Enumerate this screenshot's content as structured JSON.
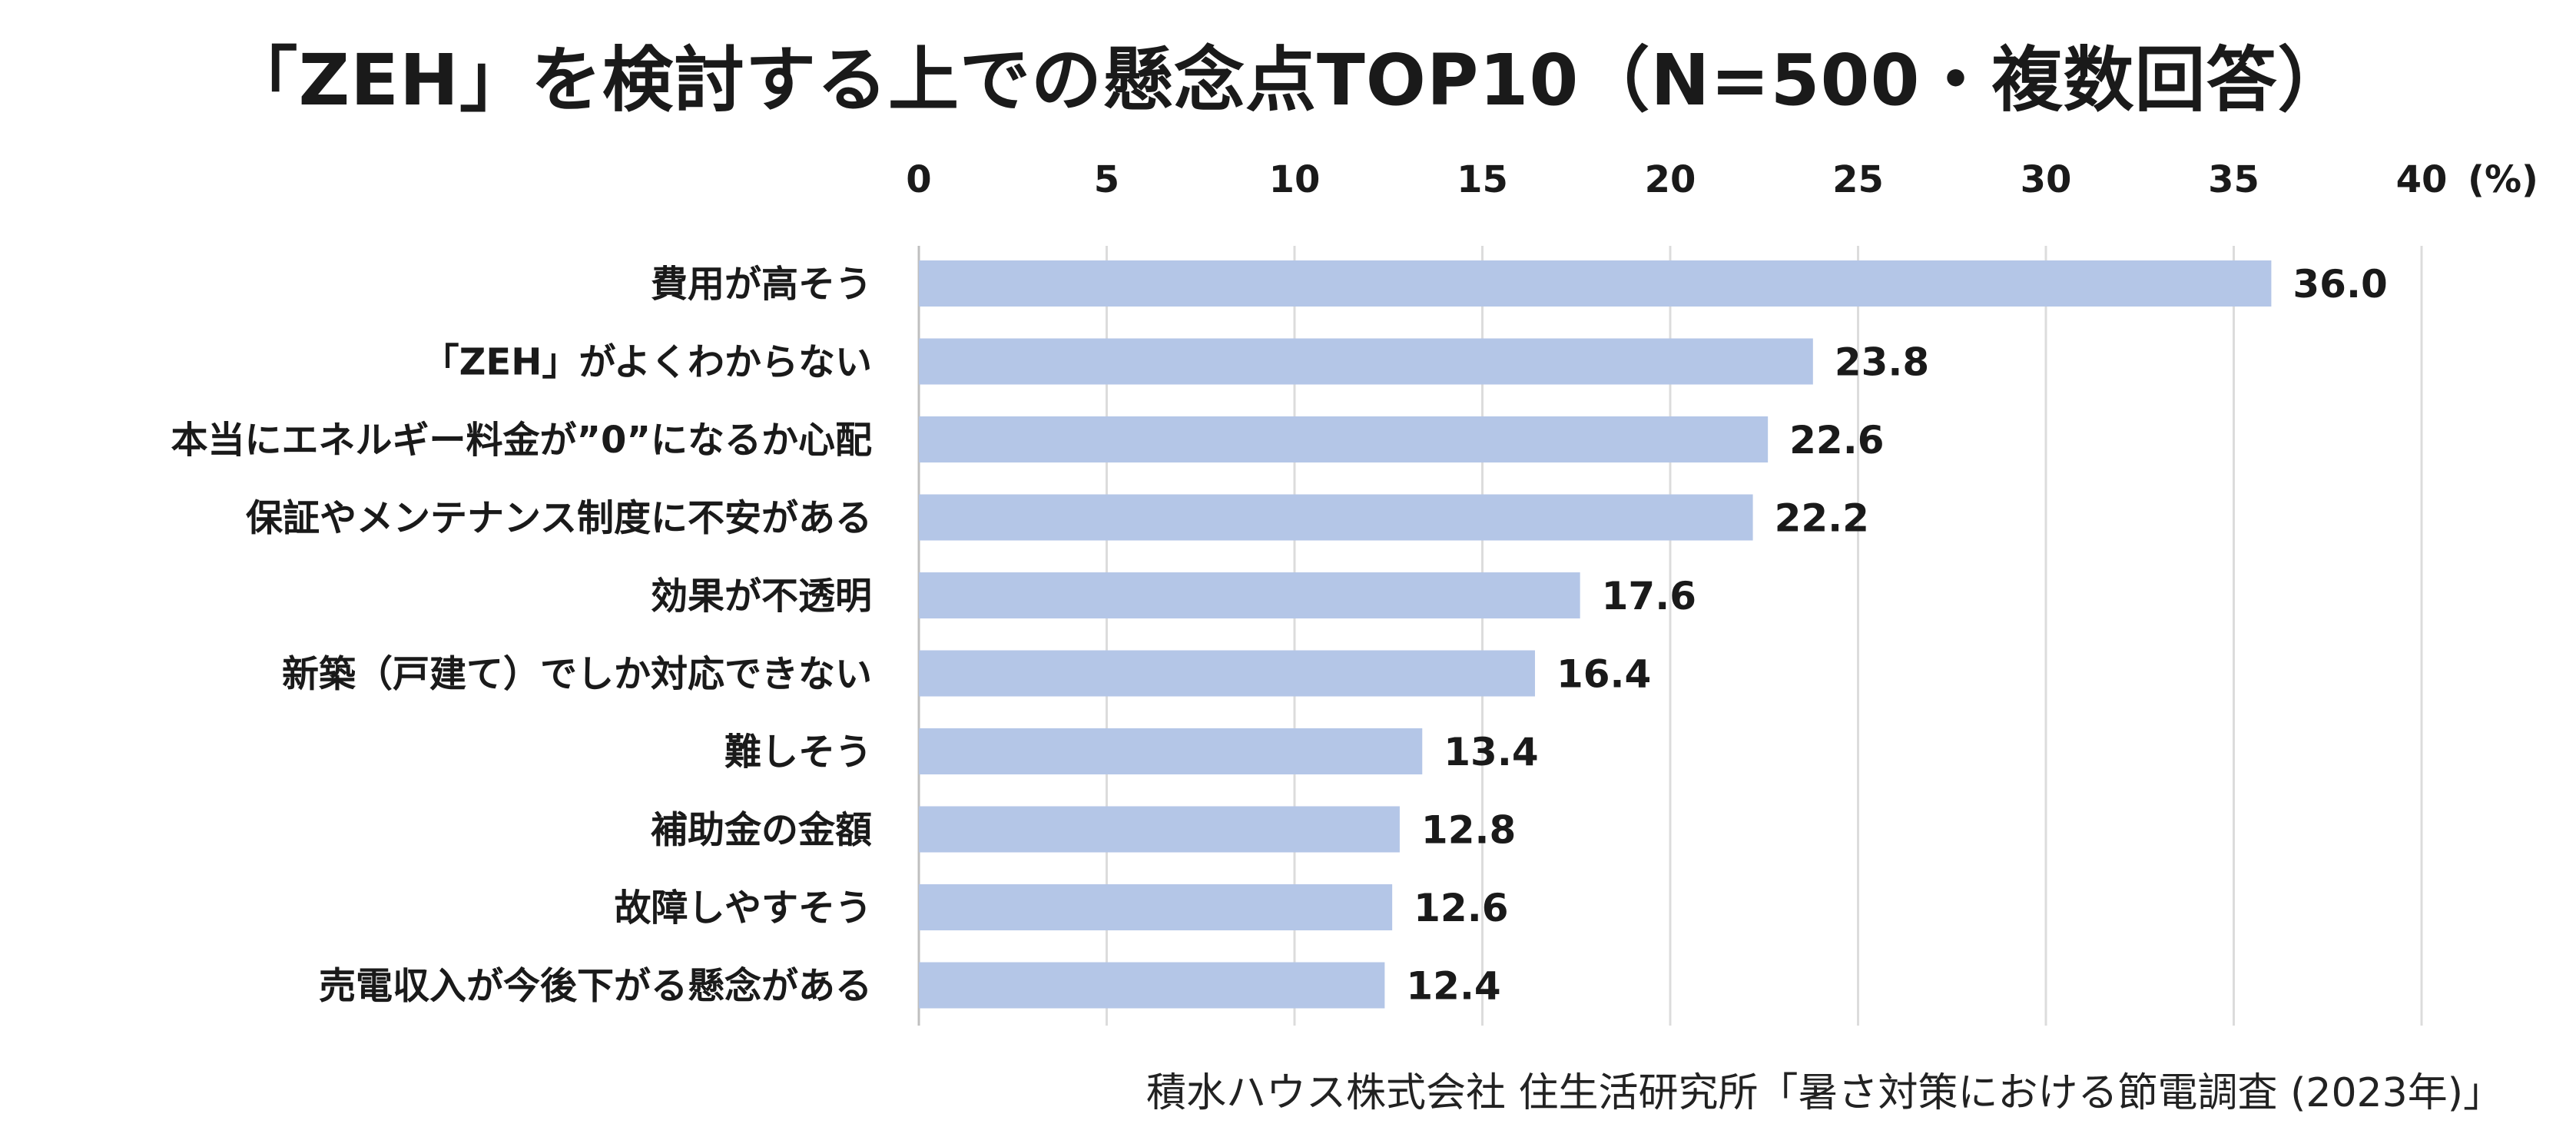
{
  "title": "「ZEH」を検討する上での懸念点TOP10（N=500・複数回答）",
  "source": "積水ハウス株式会社 住生活研究所「暑さ対策における節電調査 (2023年)」",
  "chart_data": {
    "type": "bar",
    "orientation": "horizontal",
    "x_unit": "(%)",
    "xlim": [
      0,
      40
    ],
    "xticks": [
      "0",
      "5",
      "10",
      "15",
      "20",
      "25",
      "30",
      "35",
      "40"
    ],
    "grid": true,
    "bar_color": "#b4c6e7",
    "categories": [
      "費用が高そう",
      "「ZEH」がよくわからない",
      "本当にエネルギー料金が”0”になるか心配",
      "保証やメンテナンス制度に不安がある",
      "効果が不透明",
      "新築（戸建て）でしか対応できない",
      "難しそう",
      "補助金の金額",
      "故障しやすそう",
      "売電収入が今後下がる懸念がある"
    ],
    "values": [
      36.0,
      23.8,
      22.6,
      22.2,
      17.6,
      16.4,
      13.4,
      12.8,
      12.6,
      12.4
    ],
    "value_labels": [
      "36.0",
      "23.8",
      "22.6",
      "22.2",
      "17.6",
      "16.4",
      "13.4",
      "12.8",
      "12.6",
      "12.4"
    ]
  }
}
